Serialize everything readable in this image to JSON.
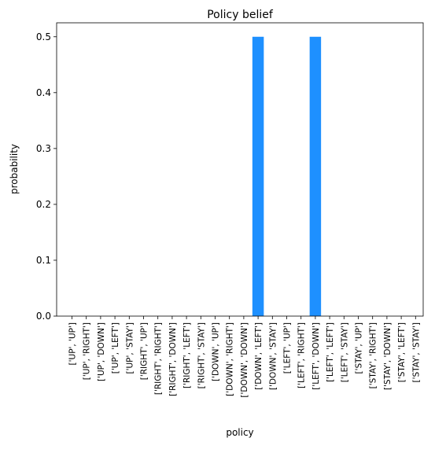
{
  "chart_data": {
    "type": "bar",
    "title": "Policy belief",
    "xlabel": "policy",
    "ylabel": "probability",
    "ylim": [
      0,
      0.525
    ],
    "yticks": [
      "0.0",
      "0.1",
      "0.2",
      "0.3",
      "0.4",
      "0.5"
    ],
    "grid": false,
    "categories": [
      "['UP', 'UP']",
      "['UP', 'RIGHT']",
      "['UP', 'DOWN']",
      "['UP', 'LEFT']",
      "['UP', 'STAY']",
      "['RIGHT', 'UP']",
      "['RIGHT', 'RIGHT']",
      "['RIGHT', 'DOWN']",
      "['RIGHT', 'LEFT']",
      "['RIGHT', 'STAY']",
      "['DOWN', 'UP']",
      "['DOWN', 'RIGHT']",
      "['DOWN', 'DOWN']",
      "['DOWN', 'LEFT']",
      "['DOWN', 'STAY']",
      "['LEFT', 'UP']",
      "['LEFT', 'RIGHT']",
      "['LEFT', 'DOWN']",
      "['LEFT', 'LEFT']",
      "['LEFT', 'STAY']",
      "['STAY', 'UP']",
      "['STAY', 'RIGHT']",
      "['STAY', 'DOWN']",
      "['STAY', 'LEFT']",
      "['STAY', 'STAY']"
    ],
    "values": [
      0,
      0,
      0,
      0,
      0,
      0,
      0,
      0,
      0,
      0,
      0,
      0,
      0,
      0.5,
      0,
      0,
      0,
      0.5,
      0,
      0,
      0,
      0,
      0,
      0,
      0
    ],
    "bar_color": "#1e90ff"
  }
}
